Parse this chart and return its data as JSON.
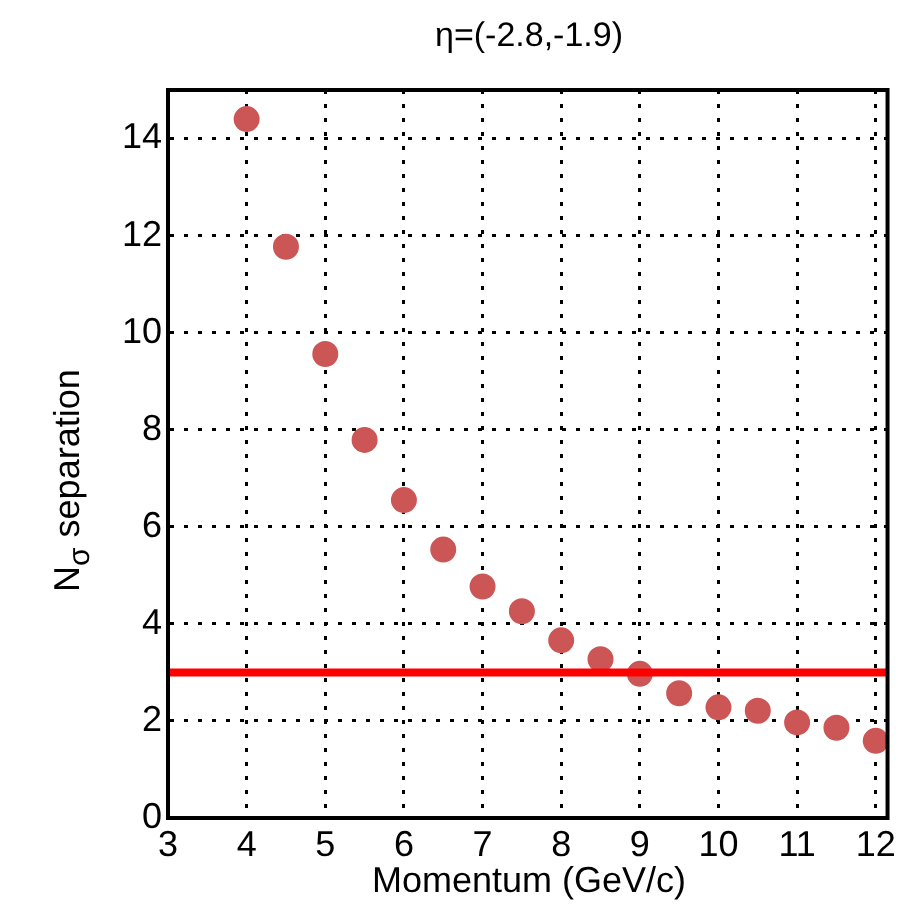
{
  "chart_data": {
    "type": "scatter",
    "title": "η=(-2.8,-1.9)",
    "xlabel": "Momentum (GeV/c)",
    "ylabel": "N$_{σ}$ separation",
    "x": [
      4,
      4.5,
      5,
      5.5,
      6,
      6.5,
      7,
      7.5,
      8,
      8.5,
      9,
      9.5,
      10,
      10.5,
      11,
      11.5,
      12
    ],
    "series": [
      {
        "color": "#cc5656",
        "values": [
          14.4,
          11.77,
          9.56,
          7.79,
          6.55,
          5.53,
          4.77,
          4.26,
          3.66,
          3.27,
          2.97,
          2.57,
          2.28,
          2.21,
          1.97,
          1.86,
          1.59
        ]
      }
    ],
    "xlim": [
      3,
      12.15
    ],
    "xticks": [
      3,
      4,
      5,
      6,
      7,
      8,
      9,
      10,
      11,
      12
    ],
    "ylim": [
      0,
      15
    ],
    "yticks": [
      0,
      2,
      4,
      6,
      8,
      10,
      12,
      14
    ],
    "ref_lines": [
      {
        "axis": "y",
        "value": 3,
        "color": "#ff0000"
      }
    ],
    "grid": true,
    "marker": "circle",
    "legend": false
  }
}
